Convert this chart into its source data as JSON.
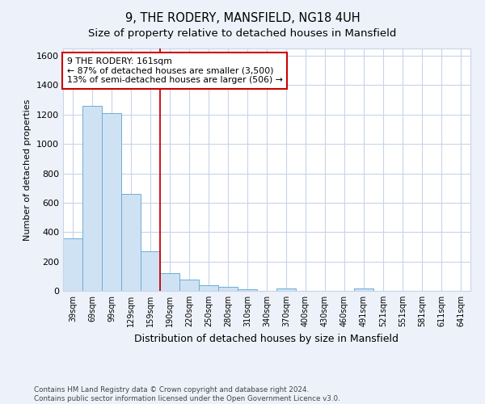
{
  "title": "9, THE RODERY, MANSFIELD, NG18 4UH",
  "subtitle": "Size of property relative to detached houses in Mansfield",
  "xlabel": "Distribution of detached houses by size in Mansfield",
  "ylabel": "Number of detached properties",
  "categories": [
    "39sqm",
    "69sqm",
    "99sqm",
    "129sqm",
    "159sqm",
    "190sqm",
    "220sqm",
    "250sqm",
    "280sqm",
    "310sqm",
    "340sqm",
    "370sqm",
    "400sqm",
    "430sqm",
    "460sqm",
    "491sqm",
    "521sqm",
    "551sqm",
    "581sqm",
    "611sqm",
    "641sqm"
  ],
  "values": [
    360,
    1260,
    1210,
    660,
    270,
    120,
    75,
    40,
    25,
    10,
    0,
    15,
    0,
    0,
    0,
    15,
    0,
    0,
    0,
    0,
    0
  ],
  "bar_color": "#cfe2f3",
  "bar_edge_color": "#6aaed6",
  "red_line_x": 4,
  "annotation_text": "9 THE RODERY: 161sqm\n← 87% of detached houses are smaller (3,500)\n13% of semi-detached houses are larger (506) →",
  "annotation_box_facecolor": "#ffffff",
  "annotation_box_edgecolor": "#cc0000",
  "ylim": [
    0,
    1650
  ],
  "yticks": [
    0,
    200,
    400,
    600,
    800,
    1000,
    1200,
    1400,
    1600
  ],
  "footer": "Contains HM Land Registry data © Crown copyright and database right 2024.\nContains public sector information licensed under the Open Government Licence v3.0.",
  "title_fontsize": 10.5,
  "subtitle_fontsize": 9.5,
  "xlabel_fontsize": 9,
  "ylabel_fontsize": 8,
  "bar_width": 1.0,
  "fig_bg_color": "#edf2fa",
  "plot_bg_color": "#ffffff",
  "grid_color": "#c8d4e8"
}
